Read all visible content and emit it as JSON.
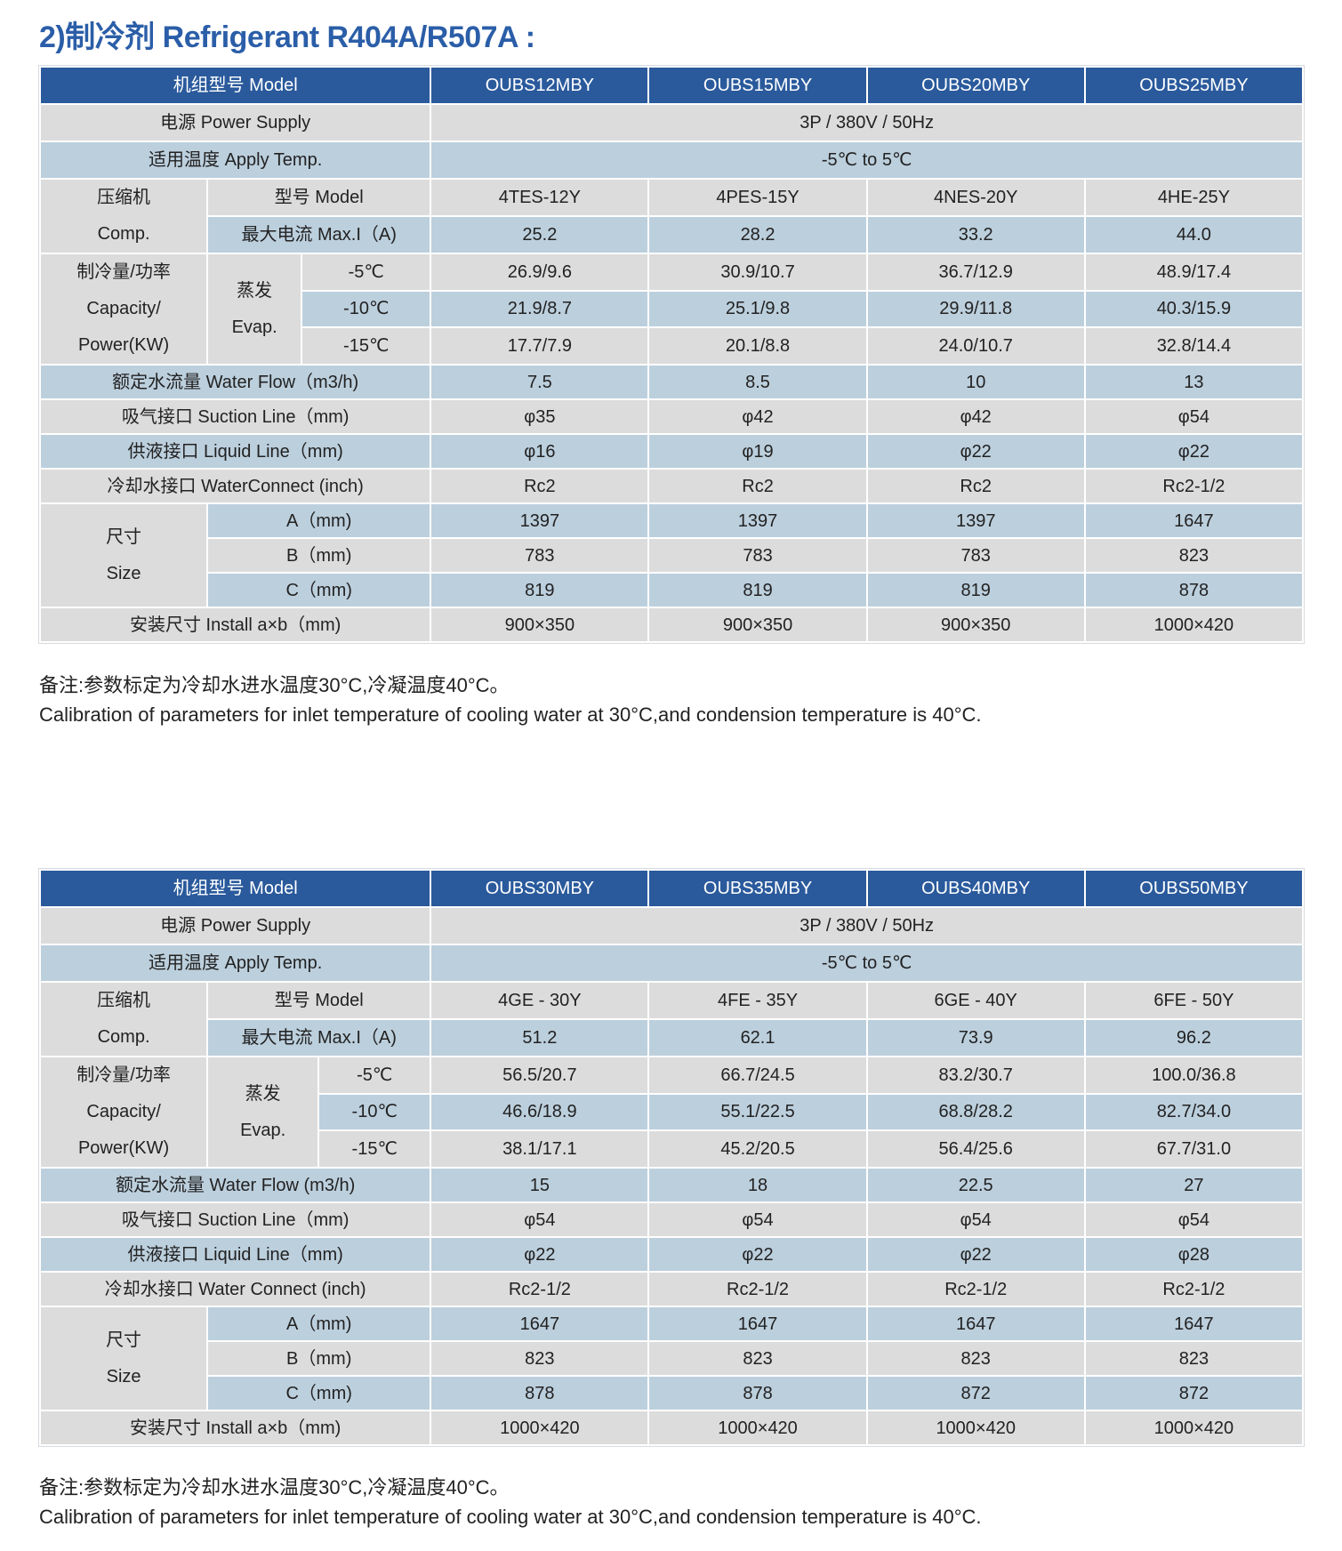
{
  "title": "2)制冷剂 Refrigerant R404A/R507A :",
  "colors": {
    "header": "#2a5a9c",
    "row_gray": "#dcdcdc",
    "row_blue": "#bccfdd",
    "title": "#2b5ea8"
  },
  "tables": [
    {
      "header": {
        "label": "机组型号 Model",
        "models": [
          "OUBS12MBY",
          "OUBS15MBY",
          "OUBS20MBY",
          "OUBS25MBY"
        ]
      },
      "power": {
        "label": "电源 Power Supply",
        "value": "3P / 380V / 50Hz"
      },
      "temp": {
        "label": "适用温度 Apply Temp.",
        "value": "-5℃ to 5℃"
      },
      "comp": {
        "label": [
          "压缩机",
          "Comp."
        ],
        "model_label": "型号 Model",
        "models": [
          "4TES-12Y",
          "4PES-15Y",
          "4NES-20Y",
          "4HE-25Y"
        ],
        "maxi_label": "最大电流 Max.I（A)",
        "maxi": [
          "25.2",
          "28.2",
          "33.2",
          "44.0"
        ]
      },
      "capacity": {
        "label": [
          "制冷量/功率",
          "Capacity/",
          "Power(KW)"
        ],
        "evap_label": [
          "蒸发",
          "Evap."
        ],
        "rows": [
          {
            "temp": "-5℃",
            "values": [
              "26.9/9.6",
              "30.9/10.7",
              "36.7/12.9",
              "48.9/17.4"
            ]
          },
          {
            "temp": "-10℃",
            "values": [
              "21.9/8.7",
              "25.1/9.8",
              "29.9/11.8",
              "40.3/15.9"
            ]
          },
          {
            "temp": "-15℃",
            "values": [
              "17.7/7.9",
              "20.1/8.8",
              "24.0/10.7",
              "32.8/14.4"
            ]
          }
        ]
      },
      "water_flow": {
        "label": "额定水流量 Water Flow（m3/h)",
        "values": [
          "7.5",
          "8.5",
          "10",
          "13"
        ]
      },
      "suction": {
        "label": "吸气接口 Suction Line（mm)",
        "values": [
          "φ35",
          "φ42",
          "φ42",
          "φ54"
        ]
      },
      "liquid": {
        "label": "供液接口 Liquid Line（mm)",
        "values": [
          "φ16",
          "φ19",
          "φ22",
          "φ22"
        ]
      },
      "water_connect": {
        "label": "冷却水接口 WaterConnect (inch)",
        "values": [
          "Rc2",
          "Rc2",
          "Rc2",
          "Rc2-1/2"
        ]
      },
      "size": {
        "label": [
          "尺寸",
          "Size"
        ],
        "rows": [
          {
            "label": "A（mm)",
            "values": [
              "1397",
              "1397",
              "1397",
              "1647"
            ]
          },
          {
            "label": "B（mm)",
            "values": [
              "783",
              "783",
              "783",
              "823"
            ]
          },
          {
            "label": "C（mm)",
            "values": [
              "819",
              "819",
              "819",
              "878"
            ]
          }
        ]
      },
      "install": {
        "label": "安装尺寸  Install a×b（mm)",
        "values": [
          "900×350",
          "900×350",
          "900×350",
          "1000×420"
        ]
      },
      "notes": [
        "备注:参数标定为冷却水进水温度30°C,冷凝温度40°C。",
        "Calibration of parameters for inlet temperature of cooling water at 30°C,and condension temperature is 40°C."
      ]
    },
    {
      "header": {
        "label": "机组型号 Model",
        "models": [
          "OUBS30MBY",
          "OUBS35MBY",
          "OUBS40MBY",
          "OUBS50MBY"
        ]
      },
      "power": {
        "label": "电源 Power Supply",
        "value": "3P / 380V / 50Hz"
      },
      "temp": {
        "label": "适用温度 Apply Temp.",
        "value": "-5℃ to 5℃"
      },
      "comp": {
        "label": [
          "压缩机",
          "Comp."
        ],
        "model_label": "型号 Model",
        "models": [
          "4GE - 30Y",
          "4FE - 35Y",
          "6GE - 40Y",
          "6FE - 50Y"
        ],
        "maxi_label": "最大电流 Max.I（A)",
        "maxi": [
          "51.2",
          "62.1",
          "73.9",
          "96.2"
        ]
      },
      "capacity": {
        "label": [
          "制冷量/功率",
          "Capacity/",
          "Power(KW)"
        ],
        "evap_label": [
          "蒸发",
          "Evap."
        ],
        "rows": [
          {
            "temp": "-5℃",
            "values": [
              "56.5/20.7",
              "66.7/24.5",
              "83.2/30.7",
              "100.0/36.8"
            ]
          },
          {
            "temp": "-10℃",
            "values": [
              "46.6/18.9",
              "55.1/22.5",
              "68.8/28.2",
              "82.7/34.0"
            ]
          },
          {
            "temp": "-15℃",
            "values": [
              "38.1/17.1",
              "45.2/20.5",
              "56.4/25.6",
              "67.7/31.0"
            ]
          }
        ]
      },
      "water_flow": {
        "label": "额定水流量 Water Flow (m3/h)",
        "values": [
          "15",
          "18",
          "22.5",
          "27"
        ]
      },
      "suction": {
        "label": "吸气接口 Suction Line（mm)",
        "values": [
          "φ54",
          "φ54",
          "φ54",
          "φ54"
        ]
      },
      "liquid": {
        "label": "供液接口 Liquid Line（mm)",
        "values": [
          "φ22",
          "φ22",
          "φ22",
          "φ28"
        ]
      },
      "water_connect": {
        "label": "冷却水接口 Water Connect (inch)",
        "values": [
          "Rc2-1/2",
          "Rc2-1/2",
          "Rc2-1/2",
          "Rc2-1/2"
        ]
      },
      "size": {
        "label": [
          "尺寸",
          "Size"
        ],
        "rows": [
          {
            "label": "A（mm)",
            "values": [
              "1647",
              "1647",
              "1647",
              "1647"
            ]
          },
          {
            "label": "B（mm)",
            "values": [
              "823",
              "823",
              "823",
              "823"
            ]
          },
          {
            "label": "C（mm)",
            "values": [
              "878",
              "878",
              "872",
              "872"
            ]
          }
        ]
      },
      "install": {
        "label": "安装尺寸  Install a×b（mm)",
        "values": [
          "1000×420",
          "1000×420",
          "1000×420",
          "1000×420"
        ]
      },
      "notes": [
        "备注:参数标定为冷却水进水温度30°C,冷凝温度40°C。",
        "Calibration of parameters for inlet temperature of cooling water at 30°C,and condension temperature is 40°C."
      ]
    }
  ]
}
